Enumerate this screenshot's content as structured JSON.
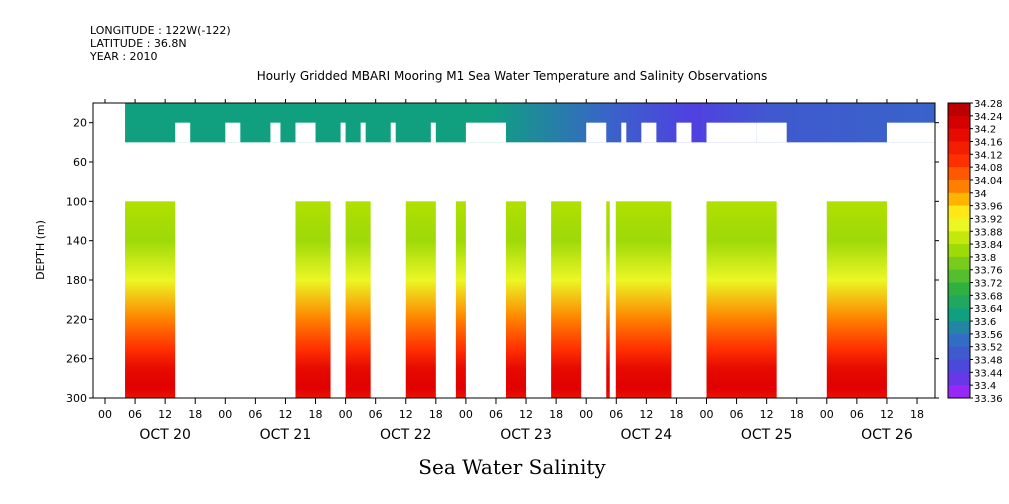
{
  "header": {
    "longitude": "LONGITUDE : 122W(-122)",
    "latitude": "LATITUDE : 36.8N",
    "year": "YEAR : 2010",
    "title": "Hourly Gridded MBARI Mooring M1 Sea Water Temperature and Salinity Observations"
  },
  "chart_data": {
    "type": "heatmap",
    "title": "Hourly Gridded MBARI Mooring M1 Sea Water Temperature and Salinity Observations",
    "bottom_label": "Sea Water Salinity",
    "ylabel": "DEPTH (m)",
    "ylim": [
      300,
      0
    ],
    "y_ticks": [
      20,
      60,
      100,
      140,
      180,
      220,
      260,
      300
    ],
    "x_hour_ticks": [
      "00",
      "06",
      "12",
      "18",
      "00",
      "06",
      "12",
      "18",
      "00",
      "06",
      "12",
      "18",
      "00",
      "06",
      "12",
      "18",
      "00",
      "06",
      "12",
      "18",
      "00",
      "06",
      "12",
      "18",
      "00",
      "06",
      "12",
      "18"
    ],
    "x_day_labels": [
      "OCT 20",
      "OCT 21",
      "OCT 22",
      "OCT 23",
      "OCT 24",
      "OCT 25",
      "OCT 26"
    ],
    "colorbar": {
      "min": 33.36,
      "max": 34.28,
      "labels": [
        "34.28",
        "34.24",
        "34.2",
        "34.16",
        "34.12",
        "34.08",
        "34.04",
        "34",
        "33.96",
        "33.92",
        "33.88",
        "33.84",
        "33.8",
        "33.76",
        "33.72",
        "33.68",
        "33.64",
        "33.6",
        "33.56",
        "33.52",
        "33.48",
        "33.44",
        "33.4",
        "33.36"
      ],
      "colors": [
        "#b00000",
        "#e00000",
        "#ff3000",
        "#ff8000",
        "#ffd000",
        "#ffff30",
        "#b0e000",
        "#30b040",
        "#10a080",
        "#3070c0",
        "#5040e0",
        "#b020ff"
      ],
      "stops": [
        34.28,
        34.2,
        34.1,
        34.02,
        33.96,
        33.92,
        33.84,
        33.7,
        33.62,
        33.55,
        33.44,
        33.36
      ]
    },
    "profile_depths": [
      0,
      40,
      80,
      100,
      140,
      180,
      220,
      250,
      270,
      300
    ],
    "profile_values": {
      "surface_west": [
        33.62,
        33.58
      ],
      "deep": [
        33.84,
        33.82,
        33.9,
        34.02,
        34.1,
        34.18,
        34.2,
        34.16
      ]
    },
    "data_gaps_note": ""
  }
}
